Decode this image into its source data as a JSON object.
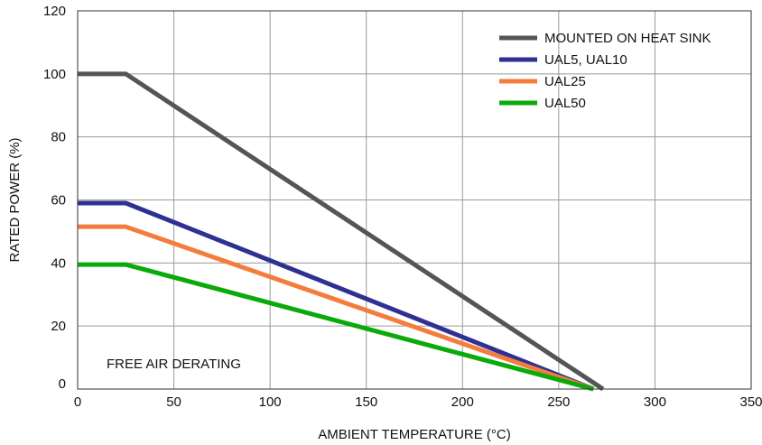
{
  "chart_data": {
    "type": "line",
    "title": "",
    "xlabel": "AMBIENT TEMPERATURE (°C)",
    "ylabel": "RATED POWER (%)",
    "xlim": [
      0,
      350
    ],
    "ylim": [
      0,
      120
    ],
    "xticks": [
      0,
      50,
      100,
      150,
      200,
      250,
      300,
      350
    ],
    "yticks": [
      0,
      20,
      40,
      60,
      80,
      100,
      120
    ],
    "grid": true,
    "legend_position": "top-right",
    "annotation": "FREE AIR DERATING",
    "series": [
      {
        "name": "MOUNTED ON HEAT SINK",
        "color": "#555555",
        "x": [
          0,
          25,
          273
        ],
        "y": [
          100,
          100,
          0
        ]
      },
      {
        "name": "UAL5, UAL10",
        "color": "#2e3192",
        "x": [
          0,
          25,
          268
        ],
        "y": [
          59,
          59,
          0
        ]
      },
      {
        "name": "UAL25",
        "color": "#f47c3c",
        "x": [
          0,
          25,
          268
        ],
        "y": [
          51.5,
          51.5,
          0
        ]
      },
      {
        "name": "UAL50",
        "color": "#0aaa0a",
        "x": [
          0,
          25,
          268
        ],
        "y": [
          39.5,
          39.5,
          0
        ]
      }
    ]
  }
}
